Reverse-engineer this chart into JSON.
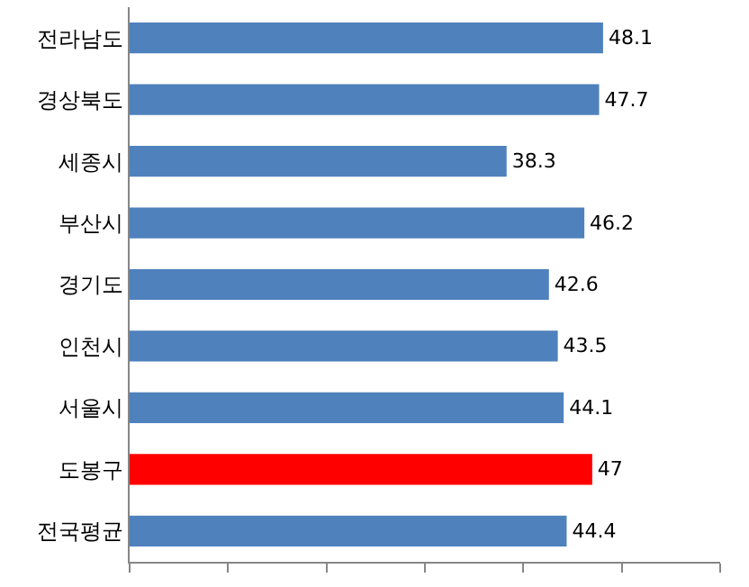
{
  "chart_data": {
    "type": "bar",
    "orientation": "horizontal",
    "categories": [
      "전라남도",
      "경상북도",
      "세종시",
      "부산시",
      "경기도",
      "인천시",
      "서울시",
      "도봉구",
      "전국평균"
    ],
    "values": [
      48.1,
      47.7,
      38.3,
      46.2,
      42.6,
      43.5,
      44.1,
      47,
      44.4
    ],
    "colors": [
      "#4f81bd",
      "#4f81bd",
      "#4f81bd",
      "#4f81bd",
      "#4f81bd",
      "#4f81bd",
      "#4f81bd",
      "#ff0000",
      "#4f81bd"
    ],
    "xlim": [
      0,
      60
    ],
    "xticks": [
      {
        "value": 0,
        "label": null
      },
      {
        "value": 10,
        "label": null
      },
      {
        "value": 20,
        "label": null
      },
      {
        "value": 30,
        "label": null
      },
      {
        "value": 40,
        "label": null
      },
      {
        "value": 50,
        "label": null
      },
      {
        "value": 60,
        "label": null
      }
    ],
    "tick_labels": "y",
    "data_labels": true,
    "grid": false,
    "legend": false
  }
}
